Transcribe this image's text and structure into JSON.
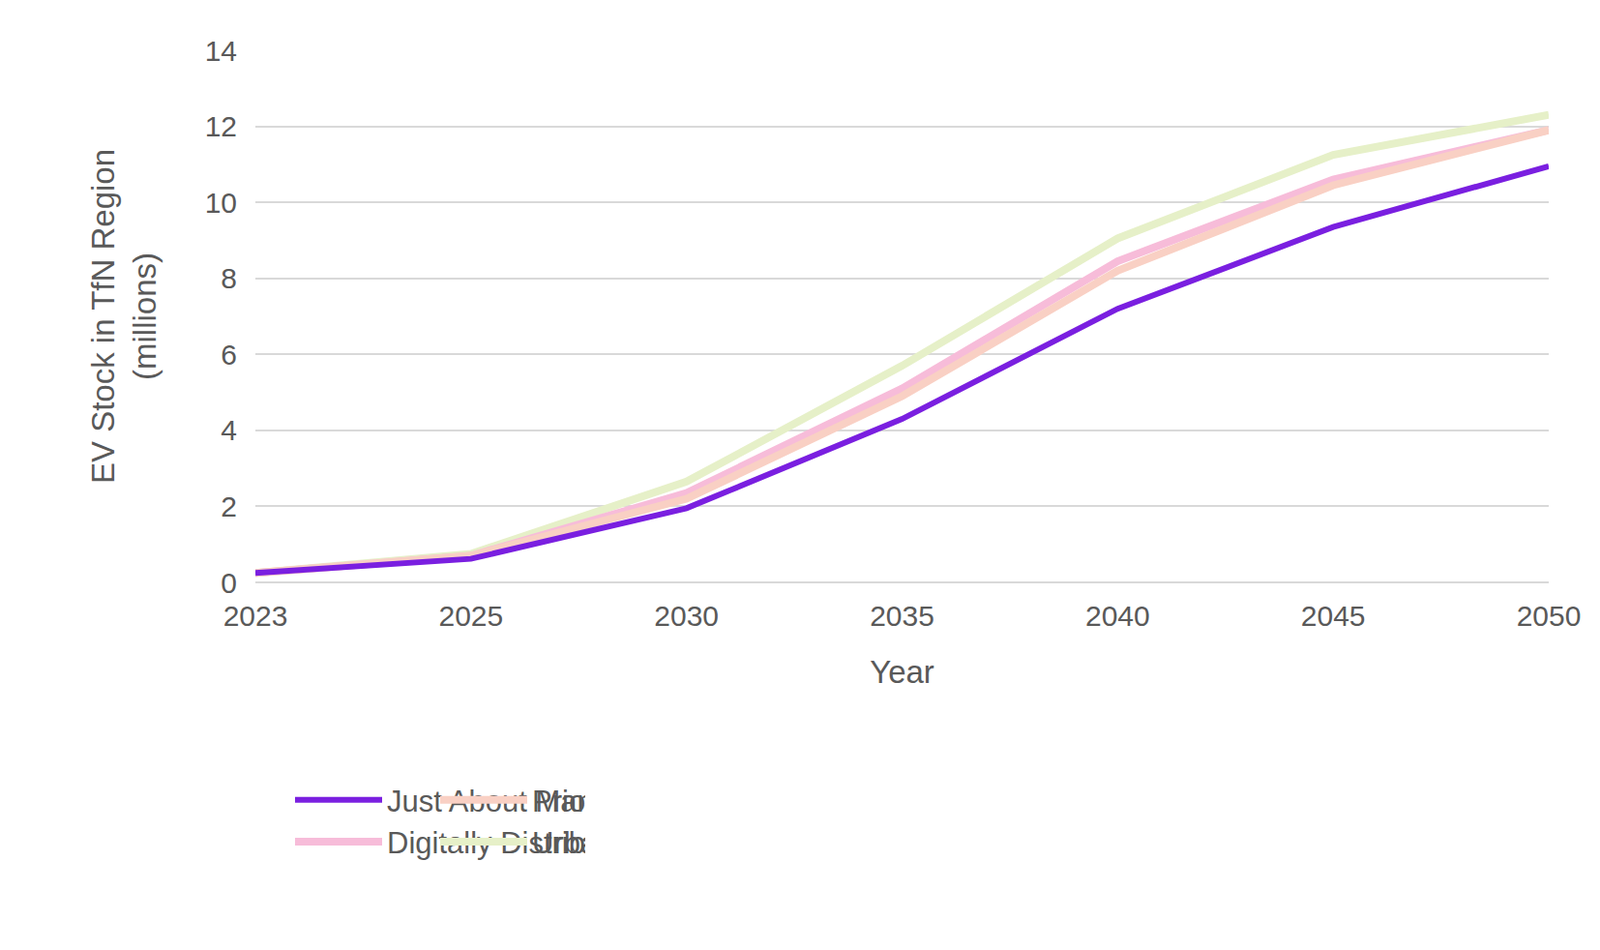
{
  "chart_data": {
    "type": "line",
    "x_label": "Year",
    "y_label": "EV Stock in TfN Region\n(millions)",
    "categories": [
      "2023",
      "2025",
      "2030",
      "2035",
      "2040",
      "2045",
      "2050"
    ],
    "series": [
      {
        "name": "Just About Managing",
        "color": "#7a1fe0",
        "values": [
          0.25,
          0.62,
          1.95,
          4.3,
          7.2,
          9.35,
          10.95
        ]
      },
      {
        "name": "Prioritised Places",
        "color": "#f9d0c4",
        "values": [
          0.25,
          0.7,
          2.2,
          4.9,
          8.2,
          10.45,
          11.9
        ]
      },
      {
        "name": "Digitally Distributed",
        "color": "#f7bcd9",
        "values": [
          0.25,
          0.7,
          2.35,
          5.1,
          8.45,
          10.6,
          11.9
        ]
      },
      {
        "name": "Urban Zero Carbon",
        "color": "#e6f0c8",
        "values": [
          0.25,
          0.75,
          2.65,
          5.7,
          9.05,
          11.25,
          12.3
        ]
      }
    ],
    "ylim": [
      0,
      14
    ],
    "yticks": [
      0,
      2,
      4,
      6,
      8,
      10,
      12,
      14
    ],
    "grid": true,
    "legend": "bottom"
  }
}
